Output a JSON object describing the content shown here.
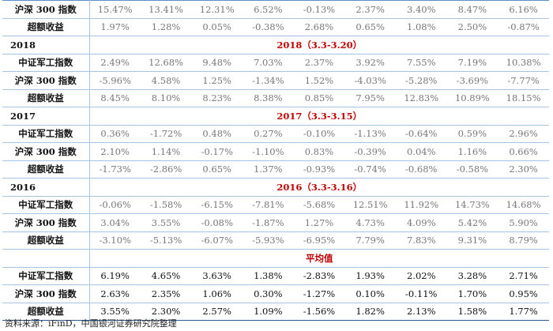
{
  "rows": [
    {
      "label": "沪深 300 指数",
      "values": [
        "15.47%",
        "13.41%",
        "12.31%",
        "6.52%",
        "-0.13%",
        "2.37%",
        "3.40%",
        "8.47%",
        "6.16%"
      ]
    },
    {
      "label": "超额收益",
      "values": [
        "1.97%",
        "1.28%",
        "0.05%",
        "-0.38%",
        "2.68%",
        "0.65%",
        "1.08%",
        "2.50%",
        "-0.87%"
      ]
    },
    {
      "year": "2018",
      "section": "2018（3.3-3.20）"
    },
    {
      "label": "中证军工指数",
      "values": [
        "2.49%",
        "12.68%",
        "9.48%",
        "7.03%",
        "2.37%",
        "3.92%",
        "7.55%",
        "7.19%",
        "10.38%"
      ]
    },
    {
      "label": "沪深 300 指数",
      "values": [
        "-5.96%",
        "4.58%",
        "1.25%",
        "-1.34%",
        "1.52%",
        "-4.03%",
        "-5.28%",
        "-3.69%",
        "-7.77%"
      ]
    },
    {
      "label": "超额收益",
      "values": [
        "8.45%",
        "8.10%",
        "8.23%",
        "8.38%",
        "0.85%",
        "7.95%",
        "12.83%",
        "10.89%",
        "18.15%"
      ]
    },
    {
      "year": "2017",
      "section": "2017（3.3-3.15）"
    },
    {
      "label": "中证军工指数",
      "values": [
        "0.36%",
        "-1.72%",
        "0.48%",
        "0.27%",
        "-0.10%",
        "-1.13%",
        "-0.64%",
        "0.59%",
        "2.96%"
      ]
    },
    {
      "label": "沪深 300 指数",
      "values": [
        "2.10%",
        "1.14%",
        "-0.17%",
        "-1.10%",
        "0.83%",
        "-0.39%",
        "0.04%",
        "1.16%",
        "0.66%"
      ]
    },
    {
      "label": "超额收益",
      "values": [
        "-1.73%",
        "-2.86%",
        "0.65%",
        "1.37%",
        "-0.93%",
        "-0.74%",
        "-0.68%",
        "-0.58%",
        "2.30%"
      ]
    },
    {
      "year": "2016",
      "section": "2016（3.3-3.16）"
    },
    {
      "label": "中证军工指数",
      "values": [
        "-0.06%",
        "-1.58%",
        "-6.15%",
        "-7.81%",
        "-5.68%",
        "12.51%",
        "11.92%",
        "14.73%",
        "14.68%"
      ]
    },
    {
      "label": "沪深 300 指数",
      "values": [
        "3.04%",
        "3.55%",
        "-0.08%",
        "-1.87%",
        "1.27%",
        "4.73%",
        "4.09%",
        "5.42%",
        "5.90%"
      ]
    },
    {
      "label": "超额收益",
      "values": [
        "-3.10%",
        "-5.13%",
        "-6.07%",
        "-5.93%",
        "-6.95%",
        "7.79%",
        "7.83%",
        "9.31%",
        "8.79%"
      ]
    },
    {
      "year": "",
      "section": "平均值"
    },
    {
      "label": "中证军工指数",
      "dark": true,
      "values": [
        "6.19%",
        "4.65%",
        "3.63%",
        "1.38%",
        "-2.83%",
        "1.93%",
        "2.02%",
        "3.28%",
        "2.71%"
      ]
    },
    {
      "label": "沪深 300 指数",
      "dark": true,
      "values": [
        "2.63%",
        "2.35%",
        "1.06%",
        "0.30%",
        "-1.27%",
        "0.10%",
        "-0.11%",
        "1.70%",
        "0.95%"
      ]
    },
    {
      "label": "超额收益",
      "dark": true,
      "values": [
        "3.55%",
        "2.30%",
        "2.57%",
        "1.09%",
        "-1.56%",
        "1.82%",
        "2.13%",
        "1.58%",
        "1.77%"
      ]
    }
  ],
  "source": "资料来源：iFinD，中国银河证券研究院整理"
}
